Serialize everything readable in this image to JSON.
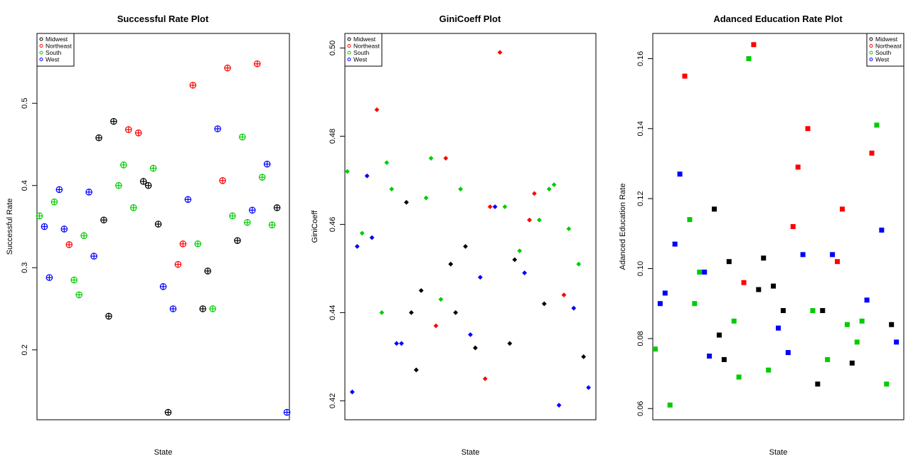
{
  "legend_labels": [
    "Midwest",
    "Northeast",
    "South",
    "West"
  ],
  "region_colors": {
    "Midwest": "#000000",
    "Northeast": "#ff0000",
    "South": "#00cc00",
    "West": "#0000ff"
  },
  "chart_data": [
    {
      "type": "scatter",
      "title": "Successful Rate Plot",
      "xlabel": "State",
      "ylabel": "Successful Rate",
      "marker": "circle-plus",
      "legend": "top-left",
      "xlim": [
        0.5,
        51.5
      ],
      "ylim": [
        0.115,
        0.585
      ],
      "yticks": [
        0.2,
        0.3,
        0.4,
        0.5
      ],
      "yticklabels": [
        "0.2",
        "0.3",
        "0.4",
        "0.5"
      ],
      "points": [
        {
          "x": 1,
          "y": 0.363,
          "region": "South"
        },
        {
          "x": 2,
          "y": 0.35,
          "region": "West"
        },
        {
          "x": 3,
          "y": 0.288,
          "region": "West"
        },
        {
          "x": 4,
          "y": 0.38,
          "region": "South"
        },
        {
          "x": 5,
          "y": 0.395,
          "region": "West"
        },
        {
          "x": 6,
          "y": 0.347,
          "region": "West"
        },
        {
          "x": 7,
          "y": 0.328,
          "region": "Northeast"
        },
        {
          "x": 8,
          "y": 0.285,
          "region": "South"
        },
        {
          "x": 9,
          "y": 0.267,
          "region": "South"
        },
        {
          "x": 10,
          "y": 0.339,
          "region": "South"
        },
        {
          "x": 11,
          "y": 0.392,
          "region": "West"
        },
        {
          "x": 12,
          "y": 0.314,
          "region": "West"
        },
        {
          "x": 13,
          "y": 0.458,
          "region": "Midwest"
        },
        {
          "x": 14,
          "y": 0.358,
          "region": "Midwest"
        },
        {
          "x": 15,
          "y": 0.241,
          "region": "Midwest"
        },
        {
          "x": 16,
          "y": 0.478,
          "region": "Midwest"
        },
        {
          "x": 17,
          "y": 0.4,
          "region": "South"
        },
        {
          "x": 18,
          "y": 0.425,
          "region": "South"
        },
        {
          "x": 19,
          "y": 0.468,
          "region": "Northeast"
        },
        {
          "x": 20,
          "y": 0.373,
          "region": "South"
        },
        {
          "x": 21,
          "y": 0.464,
          "region": "Northeast"
        },
        {
          "x": 22,
          "y": 0.405,
          "region": "Midwest"
        },
        {
          "x": 23,
          "y": 0.4,
          "region": "Midwest"
        },
        {
          "x": 24,
          "y": 0.421,
          "region": "South"
        },
        {
          "x": 25,
          "y": 0.353,
          "region": "Midwest"
        },
        {
          "x": 26,
          "y": 0.277,
          "region": "West"
        },
        {
          "x": 27,
          "y": 0.124,
          "region": "Midwest"
        },
        {
          "x": 28,
          "y": 0.25,
          "region": "West"
        },
        {
          "x": 29,
          "y": 0.304,
          "region": "Northeast"
        },
        {
          "x": 30,
          "y": 0.329,
          "region": "Northeast"
        },
        {
          "x": 31,
          "y": 0.383,
          "region": "West"
        },
        {
          "x": 32,
          "y": 0.522,
          "region": "Northeast"
        },
        {
          "x": 33,
          "y": 0.329,
          "region": "South"
        },
        {
          "x": 34,
          "y": 0.25,
          "region": "Midwest"
        },
        {
          "x": 35,
          "y": 0.296,
          "region": "Midwest"
        },
        {
          "x": 36,
          "y": 0.25,
          "region": "South"
        },
        {
          "x": 37,
          "y": 0.469,
          "region": "West"
        },
        {
          "x": 38,
          "y": 0.406,
          "region": "Northeast"
        },
        {
          "x": 39,
          "y": 0.543,
          "region": "Northeast"
        },
        {
          "x": 40,
          "y": 0.363,
          "region": "South"
        },
        {
          "x": 41,
          "y": 0.333,
          "region": "Midwest"
        },
        {
          "x": 42,
          "y": 0.459,
          "region": "South"
        },
        {
          "x": 43,
          "y": 0.355,
          "region": "South"
        },
        {
          "x": 44,
          "y": 0.37,
          "region": "West"
        },
        {
          "x": 45,
          "y": 0.548,
          "region": "Northeast"
        },
        {
          "x": 46,
          "y": 0.41,
          "region": "South"
        },
        {
          "x": 47,
          "y": 0.426,
          "region": "West"
        },
        {
          "x": 48,
          "y": 0.352,
          "region": "South"
        },
        {
          "x": 49,
          "y": 0.373,
          "region": "Midwest"
        },
        {
          "x": 51,
          "y": 0.124,
          "region": "West"
        }
      ]
    },
    {
      "type": "scatter",
      "title": "GiniCoeff Plot",
      "xlabel": "State",
      "ylabel": "GiniCoeff",
      "marker": "diamond",
      "legend": "top-left",
      "xlim": [
        0.5,
        51.5
      ],
      "ylim": [
        0.4157,
        0.5033
      ],
      "yticks": [
        0.42,
        0.44,
        0.46,
        0.48,
        0.5
      ],
      "yticklabels": [
        "0.42",
        "0.44",
        "0.46",
        "0.48",
        "0.50"
      ],
      "points": [
        {
          "x": 1,
          "y": 0.472,
          "region": "South"
        },
        {
          "x": 2,
          "y": 0.422,
          "region": "West"
        },
        {
          "x": 3,
          "y": 0.455,
          "region": "West"
        },
        {
          "x": 4,
          "y": 0.458,
          "region": "South"
        },
        {
          "x": 5,
          "y": 0.471,
          "region": "West"
        },
        {
          "x": 6,
          "y": 0.457,
          "region": "West"
        },
        {
          "x": 7,
          "y": 0.486,
          "region": "Northeast"
        },
        {
          "x": 8,
          "y": 0.44,
          "region": "South"
        },
        {
          "x": 9,
          "y": 0.474,
          "region": "South"
        },
        {
          "x": 10,
          "y": 0.468,
          "region": "South"
        },
        {
          "x": 11,
          "y": 0.433,
          "region": "West"
        },
        {
          "x": 12,
          "y": 0.433,
          "region": "West"
        },
        {
          "x": 13,
          "y": 0.465,
          "region": "Midwest"
        },
        {
          "x": 14,
          "y": 0.44,
          "region": "Midwest"
        },
        {
          "x": 15,
          "y": 0.427,
          "region": "Midwest"
        },
        {
          "x": 16,
          "y": 0.445,
          "region": "Midwest"
        },
        {
          "x": 17,
          "y": 0.466,
          "region": "South"
        },
        {
          "x": 18,
          "y": 0.475,
          "region": "South"
        },
        {
          "x": 19,
          "y": 0.437,
          "region": "Northeast"
        },
        {
          "x": 20,
          "y": 0.443,
          "region": "South"
        },
        {
          "x": 21,
          "y": 0.475,
          "region": "Northeast"
        },
        {
          "x": 22,
          "y": 0.451,
          "region": "Midwest"
        },
        {
          "x": 23,
          "y": 0.44,
          "region": "Midwest"
        },
        {
          "x": 24,
          "y": 0.468,
          "region": "South"
        },
        {
          "x": 25,
          "y": 0.455,
          "region": "Midwest"
        },
        {
          "x": 26,
          "y": 0.435,
          "region": "West"
        },
        {
          "x": 27,
          "y": 0.432,
          "region": "Midwest"
        },
        {
          "x": 28,
          "y": 0.448,
          "region": "West"
        },
        {
          "x": 29,
          "y": 0.425,
          "region": "Northeast"
        },
        {
          "x": 30,
          "y": 0.464,
          "region": "Northeast"
        },
        {
          "x": 31,
          "y": 0.464,
          "region": "West"
        },
        {
          "x": 32,
          "y": 0.499,
          "region": "Northeast"
        },
        {
          "x": 33,
          "y": 0.464,
          "region": "South"
        },
        {
          "x": 34,
          "y": 0.433,
          "region": "Midwest"
        },
        {
          "x": 35,
          "y": 0.452,
          "region": "Midwest"
        },
        {
          "x": 36,
          "y": 0.454,
          "region": "South"
        },
        {
          "x": 37,
          "y": 0.449,
          "region": "West"
        },
        {
          "x": 38,
          "y": 0.461,
          "region": "Northeast"
        },
        {
          "x": 39,
          "y": 0.467,
          "region": "Northeast"
        },
        {
          "x": 40,
          "y": 0.461,
          "region": "South"
        },
        {
          "x": 41,
          "y": 0.442,
          "region": "Midwest"
        },
        {
          "x": 42,
          "y": 0.468,
          "region": "South"
        },
        {
          "x": 43,
          "y": 0.469,
          "region": "South"
        },
        {
          "x": 44,
          "y": 0.419,
          "region": "West"
        },
        {
          "x": 45,
          "y": 0.444,
          "region": "Northeast"
        },
        {
          "x": 46,
          "y": 0.459,
          "region": "South"
        },
        {
          "x": 47,
          "y": 0.441,
          "region": "West"
        },
        {
          "x": 48,
          "y": 0.451,
          "region": "South"
        },
        {
          "x": 49,
          "y": 0.43,
          "region": "Midwest"
        },
        {
          "x": 50,
          "y": 0.423,
          "region": "West"
        }
      ]
    },
    {
      "type": "scatter",
      "title": "Adanced Education Rate Plot",
      "xlabel": "State",
      "ylabel": "Adanced Education Rate",
      "marker": "square",
      "legend": "top-right",
      "xlim": [
        0.5,
        51.5
      ],
      "ylim": [
        0.0568,
        0.1672
      ],
      "yticks": [
        0.06,
        0.08,
        0.1,
        0.12,
        0.14,
        0.16
      ],
      "yticklabels": [
        "0.06",
        "0.08",
        "0.10",
        "0.12",
        "0.14",
        "0.16"
      ],
      "points": [
        {
          "x": 1,
          "y": 0.077,
          "region": "South"
        },
        {
          "x": 2,
          "y": 0.09,
          "region": "West"
        },
        {
          "x": 3,
          "y": 0.093,
          "region": "West"
        },
        {
          "x": 4,
          "y": 0.061,
          "region": "South"
        },
        {
          "x": 5,
          "y": 0.107,
          "region": "West"
        },
        {
          "x": 6,
          "y": 0.127,
          "region": "West"
        },
        {
          "x": 7,
          "y": 0.155,
          "region": "Northeast"
        },
        {
          "x": 8,
          "y": 0.114,
          "region": "South"
        },
        {
          "x": 9,
          "y": 0.09,
          "region": "South"
        },
        {
          "x": 10,
          "y": 0.099,
          "region": "South"
        },
        {
          "x": 11,
          "y": 0.099,
          "region": "West"
        },
        {
          "x": 12,
          "y": 0.075,
          "region": "West"
        },
        {
          "x": 13,
          "y": 0.117,
          "region": "Midwest"
        },
        {
          "x": 14,
          "y": 0.081,
          "region": "Midwest"
        },
        {
          "x": 15,
          "y": 0.074,
          "region": "Midwest"
        },
        {
          "x": 16,
          "y": 0.102,
          "region": "Midwest"
        },
        {
          "x": 17,
          "y": 0.085,
          "region": "South"
        },
        {
          "x": 18,
          "y": 0.069,
          "region": "South"
        },
        {
          "x": 19,
          "y": 0.096,
          "region": "Northeast"
        },
        {
          "x": 20,
          "y": 0.16,
          "region": "South"
        },
        {
          "x": 21,
          "y": 0.164,
          "region": "Northeast"
        },
        {
          "x": 22,
          "y": 0.094,
          "region": "Midwest"
        },
        {
          "x": 23,
          "y": 0.103,
          "region": "Midwest"
        },
        {
          "x": 24,
          "y": 0.071,
          "region": "South"
        },
        {
          "x": 25,
          "y": 0.095,
          "region": "Midwest"
        },
        {
          "x": 26,
          "y": 0.083,
          "region": "West"
        },
        {
          "x": 27,
          "y": 0.088,
          "region": "Midwest"
        },
        {
          "x": 28,
          "y": 0.076,
          "region": "West"
        },
        {
          "x": 29,
          "y": 0.112,
          "region": "Northeast"
        },
        {
          "x": 30,
          "y": 0.129,
          "region": "Northeast"
        },
        {
          "x": 31,
          "y": 0.104,
          "region": "West"
        },
        {
          "x": 32,
          "y": 0.14,
          "region": "Northeast"
        },
        {
          "x": 33,
          "y": 0.088,
          "region": "South"
        },
        {
          "x": 34,
          "y": 0.067,
          "region": "Midwest"
        },
        {
          "x": 35,
          "y": 0.088,
          "region": "Midwest"
        },
        {
          "x": 36,
          "y": 0.074,
          "region": "South"
        },
        {
          "x": 37,
          "y": 0.104,
          "region": "West"
        },
        {
          "x": 38,
          "y": 0.102,
          "region": "Northeast"
        },
        {
          "x": 39,
          "y": 0.117,
          "region": "Northeast"
        },
        {
          "x": 40,
          "y": 0.084,
          "region": "South"
        },
        {
          "x": 41,
          "y": 0.073,
          "region": "Midwest"
        },
        {
          "x": 42,
          "y": 0.079,
          "region": "South"
        },
        {
          "x": 43,
          "y": 0.085,
          "region": "South"
        },
        {
          "x": 44,
          "y": 0.091,
          "region": "West"
        },
        {
          "x": 45,
          "y": 0.133,
          "region": "Northeast"
        },
        {
          "x": 46,
          "y": 0.141,
          "region": "South"
        },
        {
          "x": 47,
          "y": 0.111,
          "region": "West"
        },
        {
          "x": 48,
          "y": 0.067,
          "region": "South"
        },
        {
          "x": 49,
          "y": 0.084,
          "region": "Midwest"
        },
        {
          "x": 50,
          "y": 0.079,
          "region": "West"
        }
      ]
    }
  ]
}
